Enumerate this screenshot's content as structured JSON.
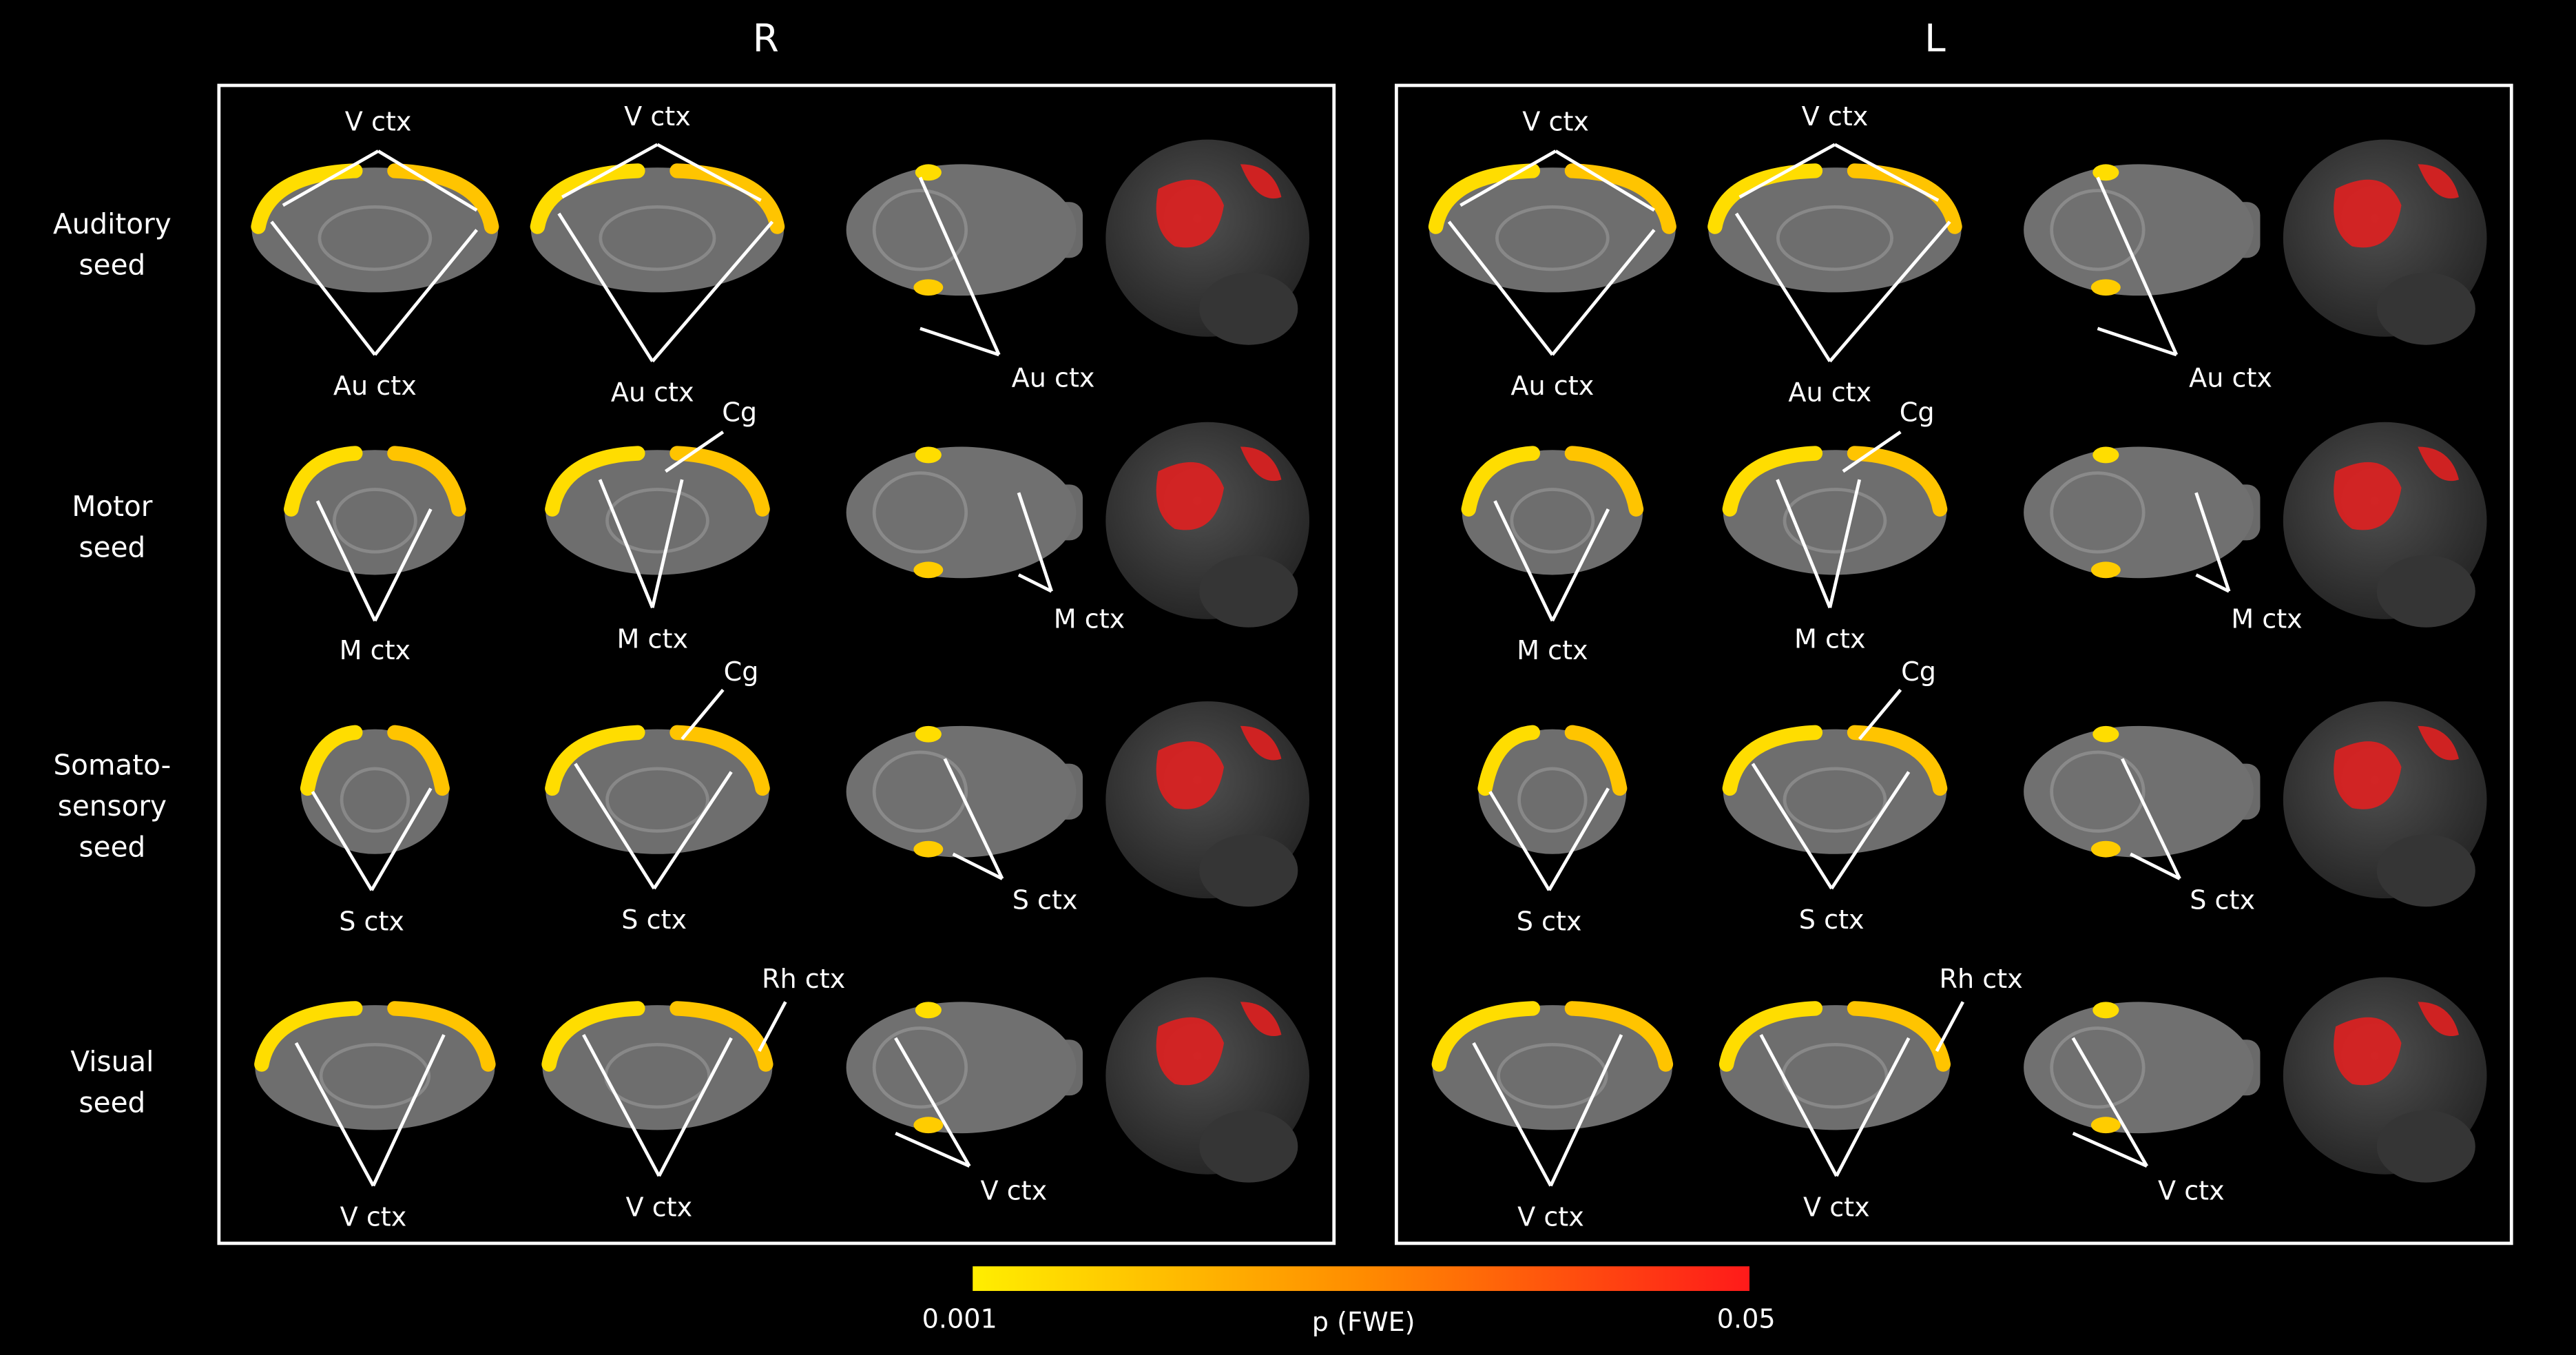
{
  "panels": [
    {
      "title": "R",
      "rows": [
        {
          "images": [
            {
              "labels": [
                "V ctx",
                "Au ctx"
              ]
            },
            {
              "labels": [
                "V ctx",
                "Au ctx"
              ]
            },
            {
              "labels": [
                "Au ctx"
              ]
            },
            {
              "labels": []
            }
          ]
        },
        {
          "images": [
            {
              "labels": [
                "M ctx"
              ]
            },
            {
              "labels": [
                "Cg",
                "M ctx"
              ]
            },
            {
              "labels": [
                "M ctx"
              ]
            },
            {
              "labels": []
            }
          ]
        },
        {
          "images": [
            {
              "labels": [
                "S ctx"
              ]
            },
            {
              "labels": [
                "Cg",
                "S ctx"
              ]
            },
            {
              "labels": [
                "S ctx"
              ]
            },
            {
              "labels": []
            }
          ]
        },
        {
          "images": [
            {
              "labels": [
                "V ctx"
              ]
            },
            {
              "labels": [
                "Rh ctx",
                "V ctx"
              ]
            },
            {
              "labels": [
                "V ctx"
              ]
            },
            {
              "labels": []
            }
          ]
        }
      ]
    },
    {
      "title": "L",
      "rows": [
        {
          "images": [
            {
              "labels": [
                "V ctx",
                "Au ctx"
              ]
            },
            {
              "labels": [
                "V ctx",
                "Au ctx"
              ]
            },
            {
              "labels": [
                "Au ctx"
              ]
            },
            {
              "labels": []
            }
          ]
        },
        {
          "images": [
            {
              "labels": [
                "M ctx"
              ]
            },
            {
              "labels": [
                "Cg",
                "M ctx"
              ]
            },
            {
              "labels": [
                "M ctx"
              ]
            },
            {
              "labels": []
            }
          ]
        },
        {
          "images": [
            {
              "labels": [
                "S ctx"
              ]
            },
            {
              "labels": [
                "Cg",
                "S ctx"
              ]
            },
            {
              "labels": [
                "S ctx"
              ]
            },
            {
              "labels": []
            }
          ]
        },
        {
          "images": [
            {
              "labels": [
                "V ctx"
              ]
            },
            {
              "labels": [
                "Rh ctx",
                "V ctx"
              ]
            },
            {
              "labels": [
                "V ctx"
              ]
            },
            {
              "labels": []
            }
          ]
        }
      ]
    }
  ],
  "row_labels": [
    [
      "Auditory",
      "seed"
    ],
    [
      "Motor",
      "seed"
    ],
    [
      "Somato-",
      "sensory",
      "seed"
    ],
    [
      "Visual",
      "seed"
    ]
  ],
  "colorbar": {
    "min_label": "0.001",
    "max_label": "0.05",
    "title": "p (FWE)"
  }
}
